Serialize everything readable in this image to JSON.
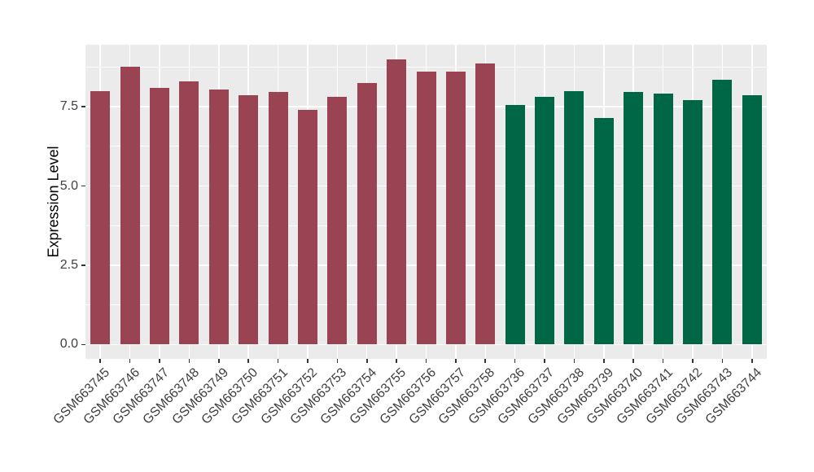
{
  "figure": {
    "background": "#FFFFFF",
    "panel_background": "#EBEBEB",
    "gridline_color": "#FFFFFF",
    "tick_mark_color": "#333333",
    "axis_text_color": "#404040",
    "axis_title_color": "#000000"
  },
  "chart_data": {
    "type": "bar",
    "title": "",
    "xlabel": "",
    "ylabel": "Expression Level",
    "legend": false,
    "grid": true,
    "ylim": [
      -0.45,
      9.45
    ],
    "yticks": [
      0,
      2.5,
      5,
      7.5
    ],
    "ytick_labels": [
      "0.0",
      "2.5",
      "5.0",
      "7.5"
    ],
    "yticks_minor": [
      1.25,
      3.75,
      6.25,
      8.75
    ],
    "categories": [
      "GSM663745",
      "GSM663746",
      "GSM663747",
      "GSM663748",
      "GSM663749",
      "GSM663750",
      "GSM663751",
      "GSM663752",
      "GSM663753",
      "GSM663754",
      "GSM663755",
      "GSM663756",
      "GSM663757",
      "GSM663758",
      "GSM663736",
      "GSM663737",
      "GSM663738",
      "GSM663739",
      "GSM663740",
      "GSM663741",
      "GSM663742",
      "GSM663743",
      "GSM663744"
    ],
    "values": [
      8.0,
      8.75,
      8.1,
      8.3,
      8.05,
      7.85,
      7.95,
      7.4,
      7.8,
      8.25,
      9.0,
      8.6,
      8.6,
      8.85,
      7.55,
      7.8,
      8.0,
      7.15,
      7.95,
      7.9,
      7.7,
      8.35,
      7.85
    ],
    "colors": [
      "#9A4453",
      "#9A4453",
      "#9A4453",
      "#9A4453",
      "#9A4453",
      "#9A4453",
      "#9A4453",
      "#9A4453",
      "#9A4453",
      "#9A4453",
      "#9A4453",
      "#9A4453",
      "#9A4453",
      "#9A4453",
      "#006746",
      "#006746",
      "#006746",
      "#006746",
      "#006746",
      "#006746",
      "#006746",
      "#006746",
      "#006746"
    ]
  }
}
